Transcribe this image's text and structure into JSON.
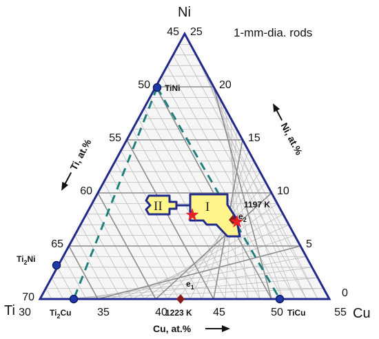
{
  "title": "1-mm-dia. rods",
  "corners": {
    "top": "Ni",
    "left": "Ti",
    "right": "Cu"
  },
  "axis_labels": {
    "left": "Ti, at.%",
    "right": "Ni, at.%",
    "bottom": "Cu, at.%"
  },
  "left_ticks": [
    "45",
    "50",
    "55",
    "60",
    "65",
    "70"
  ],
  "right_ticks": [
    "25",
    "20",
    "15",
    "10",
    "5",
    "0"
  ],
  "bottom_ticks": [
    "30",
    "35",
    "40",
    "45",
    "50",
    "55"
  ],
  "points": {
    "tini": "TiNi",
    "ti2ni_base": "Ti",
    "ti2ni_sub": "2",
    "ti2ni_tail": "Ni",
    "ti2cu_base": "Ti",
    "ti2cu_sub": "2",
    "ti2cu_tail": "Cu",
    "ticu": "TiCu",
    "e1_base": "e",
    "e1_sub": "1",
    "e2_base": "e",
    "e2_sub": "2",
    "t1223": "1223 K",
    "t1197": "1197 K"
  },
  "regions": {
    "r1": "I",
    "r2": "II"
  },
  "colors": {
    "frame": "#1f2a8a",
    "grid": "#8c8c8c",
    "fine_grid": "#bdbdbd",
    "dashed": "#1f7f7f",
    "region_fill": "#fff58a",
    "star": "#e8202a",
    "eutectic": "#8b1a1a",
    "node": "#1f3aa8"
  }
}
